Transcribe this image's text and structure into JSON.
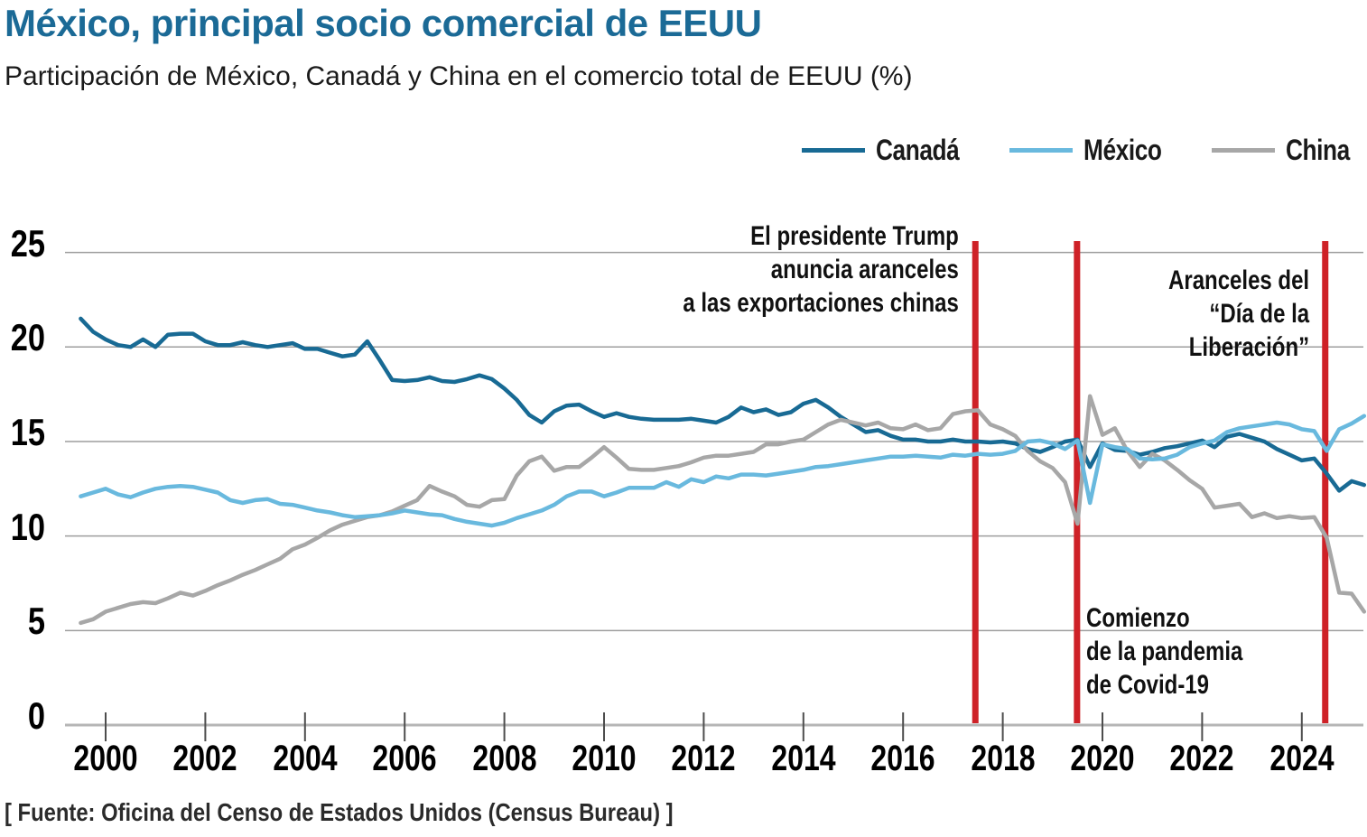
{
  "chart_data": {
    "type": "line",
    "title": "México, principal socio comercial de EEUU",
    "subtitle": "Participación de México, Canadá y China en el comercio total de EEUU (%)",
    "source": "[ Fuente: Oficina del Censo de Estados Unidos (Census Bureau) ]",
    "x_start": 1999.5,
    "x_step": 0.25,
    "x_ticks": [
      2000,
      2002,
      2004,
      2006,
      2008,
      2010,
      2012,
      2014,
      2016,
      2018,
      2020,
      2022,
      2024
    ],
    "y_ticks": [
      0,
      5,
      10,
      15,
      20,
      25
    ],
    "ylim": [
      0,
      25.6
    ],
    "grid": true,
    "legend_position": "top-right",
    "event_line_color": "#ce2127",
    "series": [
      {
        "name": "Canadá",
        "color": "#186a94",
        "values": [
          21.5,
          20.8,
          20.4,
          20.1,
          20.0,
          20.4,
          20.0,
          20.65,
          20.7,
          20.7,
          20.3,
          20.1,
          20.1,
          20.25,
          20.1,
          20.0,
          20.1,
          20.2,
          19.9,
          19.9,
          19.7,
          19.5,
          19.6,
          20.3,
          19.3,
          18.25,
          18.2,
          18.25,
          18.4,
          18.2,
          18.15,
          18.3,
          18.5,
          18.3,
          17.8,
          17.2,
          16.4,
          16.0,
          16.6,
          16.9,
          16.95,
          16.6,
          16.3,
          16.5,
          16.3,
          16.2,
          16.15,
          16.15,
          16.15,
          16.2,
          16.1,
          16.0,
          16.3,
          16.8,
          16.55,
          16.7,
          16.4,
          16.55,
          17.0,
          17.2,
          16.8,
          16.3,
          15.9,
          15.5,
          15.6,
          15.3,
          15.1,
          15.1,
          15.0,
          15.0,
          15.1,
          15.0,
          15.0,
          14.95,
          15.0,
          14.9,
          14.6,
          14.45,
          14.7,
          15.0,
          15.1,
          13.65,
          14.9,
          14.55,
          14.5,
          14.3,
          14.45,
          14.65,
          14.75,
          14.9,
          15.05,
          14.7,
          15.25,
          15.4,
          15.2,
          15.0,
          14.6,
          14.3,
          14.0,
          14.1,
          13.3,
          12.4,
          12.9,
          12.7
        ]
      },
      {
        "name": "México",
        "color": "#69b9de",
        "values": [
          12.1,
          12.3,
          12.5,
          12.2,
          12.05,
          12.3,
          12.5,
          12.6,
          12.65,
          12.6,
          12.45,
          12.3,
          11.9,
          11.75,
          11.9,
          11.95,
          11.7,
          11.65,
          11.5,
          11.35,
          11.25,
          11.1,
          11.0,
          11.05,
          11.1,
          11.2,
          11.35,
          11.25,
          11.15,
          11.1,
          10.9,
          10.75,
          10.65,
          10.55,
          10.7,
          10.95,
          11.15,
          11.35,
          11.65,
          12.1,
          12.35,
          12.35,
          12.1,
          12.3,
          12.55,
          12.55,
          12.55,
          12.85,
          12.6,
          13.0,
          12.85,
          13.15,
          13.05,
          13.25,
          13.25,
          13.2,
          13.3,
          13.4,
          13.5,
          13.65,
          13.7,
          13.8,
          13.9,
          14.0,
          14.1,
          14.2,
          14.2,
          14.25,
          14.2,
          14.15,
          14.3,
          14.25,
          14.35,
          14.3,
          14.35,
          14.5,
          15.0,
          15.05,
          14.9,
          14.6,
          15.05,
          11.75,
          14.85,
          14.7,
          14.6,
          14.1,
          14.05,
          14.1,
          14.3,
          14.7,
          14.9,
          15.05,
          15.5,
          15.7,
          15.8,
          15.9,
          16.0,
          15.9,
          15.65,
          15.55,
          14.5,
          15.65,
          15.95,
          16.35
        ]
      },
      {
        "name": "China",
        "color": "#a7a7a7",
        "values": [
          5.4,
          5.6,
          6.0,
          6.2,
          6.4,
          6.5,
          6.45,
          6.7,
          7.0,
          6.85,
          7.1,
          7.4,
          7.65,
          7.95,
          8.2,
          8.5,
          8.8,
          9.3,
          9.55,
          9.9,
          10.3,
          10.6,
          10.8,
          11.0,
          11.1,
          11.3,
          11.6,
          11.9,
          12.65,
          12.35,
          12.1,
          11.65,
          11.55,
          11.9,
          11.95,
          13.2,
          13.95,
          14.2,
          13.45,
          13.65,
          13.65,
          14.15,
          14.7,
          14.15,
          13.55,
          13.5,
          13.5,
          13.6,
          13.7,
          13.9,
          14.15,
          14.25,
          14.25,
          14.35,
          14.45,
          14.85,
          14.85,
          15.0,
          15.1,
          15.5,
          15.9,
          16.15,
          16.0,
          15.85,
          16.0,
          15.7,
          15.65,
          15.9,
          15.6,
          15.7,
          16.45,
          16.6,
          16.65,
          15.9,
          15.65,
          15.3,
          14.5,
          13.95,
          13.6,
          12.85,
          10.65,
          17.4,
          15.35,
          15.7,
          14.5,
          13.65,
          14.35,
          14.0,
          13.5,
          12.95,
          12.5,
          11.5,
          11.6,
          11.7,
          11.0,
          11.2,
          10.95,
          11.05,
          10.95,
          11.0,
          9.9,
          7.0,
          6.95,
          6.0
        ]
      }
    ],
    "events": [
      {
        "year": 2017.45,
        "align": "right",
        "label_lines": [
          "El presidente Trump",
          "anuncia aranceles",
          "a las exportaciones chinas"
        ]
      },
      {
        "year": 2019.49,
        "align": "left",
        "label_lines": [
          "Comienzo",
          "de la pandemia",
          "de Covid-19"
        ]
      },
      {
        "year": 2024.47,
        "align": "right",
        "label_lines": [
          "Aranceles del",
          "“Día de la",
          "Liberación”"
        ]
      }
    ]
  }
}
